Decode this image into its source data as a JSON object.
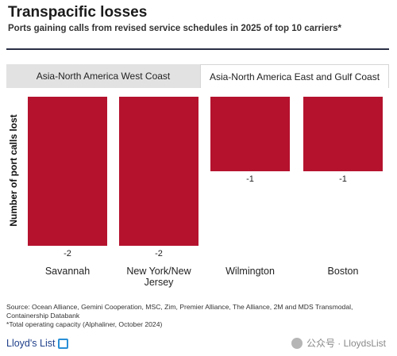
{
  "header": {
    "title": "Transpacific losses",
    "subtitle": "Ports gaining calls from revised service schedules in 2025 of top 10 carriers*"
  },
  "tabs": [
    {
      "label": "Asia-North America West Coast"
    },
    {
      "label": "Asia-North America East and Gulf Coast"
    }
  ],
  "chart_data": {
    "type": "bar",
    "categories": [
      "Savannah",
      "New York/New Jersey",
      "Wilmington",
      "Boston"
    ],
    "category_groups": [
      "Asia-North America West Coast",
      "Asia-North America West Coast",
      "Asia-North America East and Gulf Coast",
      "Asia-North America East and Gulf Coast"
    ],
    "values": [
      -2,
      -2,
      -1,
      -1
    ],
    "data_labels": [
      "-2",
      "-2",
      "-1",
      "-1"
    ],
    "xlabel": "",
    "ylabel": "Number of port calls lost",
    "ylim": [
      -2,
      0
    ],
    "grid": false,
    "legend": "none",
    "bar_color": "#b5122e"
  },
  "footer": {
    "source": "Source: Ocean Alliance, Gemini Cooperation, MSC, Zim, Premier Alliance, The Alliance, 2M and MDS Transmodal, Containership Databank",
    "note": "*Total operating capacity (Alphaliner, October 2024)",
    "brand": "Lloyd's List",
    "watermark": "公众号 · LloydsList"
  }
}
